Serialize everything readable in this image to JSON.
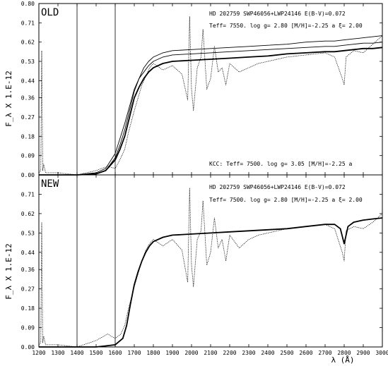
{
  "chart_data": [
    {
      "type": "line",
      "panel_label": "OLD",
      "xlabel": "λ (Å)",
      "ylabel": "F_λ X 1.E-12",
      "xlim": [
        1200,
        3000
      ],
      "ylim": [
        0.0,
        0.8
      ],
      "grid": false,
      "x_ticks": [
        1200,
        1300,
        1400,
        1500,
        1600,
        1700,
        1800,
        1900,
        2000,
        2100,
        2200,
        2300,
        2400,
        2500,
        2600,
        2700,
        2800,
        2900,
        3000
      ],
      "y_ticks": [
        0.0,
        0.09,
        0.18,
        0.27,
        0.36,
        0.44,
        0.53,
        0.62,
        0.71,
        0.8
      ],
      "y_tick_labels": [
        "0.00",
        "0.09",
        "0.18",
        "0.27",
        "0.36",
        "0.44",
        "0.53",
        "0.62",
        "0.71",
        "0.80"
      ],
      "vlines": [
        1400,
        1600
      ],
      "annotations": {
        "line1": "HD 202759 SWP46056+LWP24146   E(B-V)=0.072",
        "line2": "Teff=  7550.  log g= 2.80 [M/H]=-2.25 a  ξ= 2.00",
        "line3": "KCC: Teff=  7500. log g= 3.05 [M/H]=-2.25 a"
      },
      "series": [
        {
          "style": "thick",
          "x": [
            1200,
            1300,
            1400,
            1500,
            1550,
            1600,
            1625,
            1650,
            1675,
            1700,
            1725,
            1750,
            1775,
            1800,
            1850,
            1900,
            2000,
            2100,
            2200,
            2300,
            2400,
            2500,
            2600,
            2700,
            2750,
            2800,
            2850,
            2900,
            2950,
            3000
          ],
          "y": [
            0.0,
            0.0,
            0.0,
            0.005,
            0.02,
            0.07,
            0.12,
            0.18,
            0.27,
            0.36,
            0.41,
            0.45,
            0.48,
            0.5,
            0.52,
            0.53,
            0.535,
            0.54,
            0.545,
            0.55,
            0.555,
            0.565,
            0.57,
            0.575,
            0.575,
            0.58,
            0.585,
            0.59,
            0.59,
            0.595
          ]
        },
        {
          "style": "thin",
          "x": [
            1200,
            1300,
            1400,
            1500,
            1550,
            1600,
            1625,
            1650,
            1675,
            1700,
            1725,
            1750,
            1775,
            1800,
            1850,
            1900,
            2000,
            2100,
            2200,
            2300,
            2400,
            2500,
            2600,
            2700,
            2750,
            2800,
            2850,
            2900,
            2950,
            3000
          ],
          "y": [
            0.0,
            0.0,
            0.0,
            0.01,
            0.03,
            0.1,
            0.17,
            0.24,
            0.32,
            0.4,
            0.45,
            0.48,
            0.51,
            0.53,
            0.55,
            0.56,
            0.565,
            0.57,
            0.575,
            0.58,
            0.585,
            0.59,
            0.595,
            0.6,
            0.6,
            0.605,
            0.61,
            0.615,
            0.615,
            0.62
          ]
        },
        {
          "style": "thin",
          "x": [
            1200,
            1300,
            1400,
            1500,
            1550,
            1600,
            1625,
            1650,
            1675,
            1700,
            1725,
            1750,
            1775,
            1800,
            1850,
            1900,
            2000,
            2100,
            2200,
            2300,
            2400,
            2500,
            2600,
            2700,
            2750,
            2800,
            2850,
            2900,
            2950,
            3000
          ],
          "y": [
            0.0,
            0.0,
            0.0,
            0.005,
            0.02,
            0.08,
            0.14,
            0.21,
            0.3,
            0.39,
            0.45,
            0.5,
            0.53,
            0.55,
            0.57,
            0.58,
            0.585,
            0.59,
            0.595,
            0.6,
            0.605,
            0.61,
            0.62,
            0.625,
            0.625,
            0.63,
            0.635,
            0.64,
            0.645,
            0.65
          ]
        },
        {
          "style": "dotted",
          "x": [
            1200,
            1210,
            1215,
            1220,
            1225,
            1235,
            1300,
            1400,
            1500,
            1560,
            1600,
            1630,
            1650,
            1670,
            1700,
            1720,
            1740,
            1760,
            1780,
            1800,
            1850,
            1900,
            1950,
            1980,
            1990,
            2000,
            2010,
            2030,
            2050,
            2060,
            2080,
            2100,
            2120,
            2140,
            2160,
            2180,
            2200,
            2250,
            2300,
            2350,
            2400,
            2500,
            2600,
            2700,
            2750,
            2790,
            2800,
            2810,
            2850,
            2900,
            2950,
            3000
          ],
          "y": [
            0.01,
            0.02,
            0.58,
            0.02,
            0.05,
            0.01,
            0.01,
            0.0,
            0.02,
            0.04,
            0.03,
            0.08,
            0.12,
            0.2,
            0.3,
            0.36,
            0.42,
            0.46,
            0.5,
            0.52,
            0.49,
            0.51,
            0.47,
            0.35,
            0.74,
            0.4,
            0.3,
            0.5,
            0.55,
            0.68,
            0.4,
            0.45,
            0.6,
            0.48,
            0.5,
            0.42,
            0.52,
            0.48,
            0.5,
            0.52,
            0.53,
            0.55,
            0.56,
            0.57,
            0.55,
            0.45,
            0.42,
            0.55,
            0.58,
            0.57,
            0.61,
            0.65
          ]
        }
      ]
    },
    {
      "type": "line",
      "panel_label": "NEW",
      "xlabel": "λ (Å)",
      "ylabel": "F_λ X 1.E-12",
      "xlim": [
        1200,
        3000
      ],
      "ylim": [
        0.0,
        0.8
      ],
      "grid": false,
      "x_ticks": [
        1200,
        1300,
        1400,
        1500,
        1600,
        1700,
        1800,
        1900,
        2000,
        2100,
        2200,
        2300,
        2400,
        2500,
        2600,
        2700,
        2800,
        2900,
        3000
      ],
      "x_tick_labels": [
        "1200",
        "1300",
        "1400",
        "1500",
        "1600",
        "1700",
        "1800",
        "1900",
        "2000",
        "2100",
        "2200",
        "2300",
        "2400",
        "2500",
        "2600",
        "2700",
        "2800",
        "2900",
        "3000"
      ],
      "y_ticks": [
        0.0,
        0.09,
        0.18,
        0.27,
        0.36,
        0.44,
        0.53,
        0.62,
        0.71
      ],
      "y_tick_labels": [
        "0.00",
        "0.09",
        "0.18",
        "0.27",
        "0.36",
        "0.44",
        "0.53",
        "0.62",
        "0.71"
      ],
      "vlines": [
        1400,
        1600
      ],
      "annotations": {
        "line1": "HD 202759 SWP46056+LWP24146   E(B-V)=0.072",
        "line2": "Teff=  7500.   log g= 2.80 [M/H]=-2.25 a  ξ= 2.00"
      },
      "series": [
        {
          "style": "thick",
          "x": [
            1200,
            1300,
            1400,
            1500,
            1550,
            1600,
            1640,
            1660,
            1680,
            1700,
            1720,
            1740,
            1760,
            1780,
            1800,
            1850,
            1900,
            2000,
            2100,
            2200,
            2300,
            2400,
            2500,
            2600,
            2700,
            2750,
            2780,
            2800,
            2820,
            2850,
            2900,
            2950,
            3000
          ],
          "y": [
            0.0,
            0.0,
            0.0,
            0.0,
            0.005,
            0.01,
            0.04,
            0.1,
            0.2,
            0.29,
            0.35,
            0.4,
            0.44,
            0.47,
            0.49,
            0.51,
            0.52,
            0.525,
            0.53,
            0.535,
            0.54,
            0.545,
            0.55,
            0.56,
            0.57,
            0.57,
            0.55,
            0.48,
            0.56,
            0.58,
            0.59,
            0.595,
            0.6
          ]
        },
        {
          "style": "dotted",
          "x": [
            1200,
            1210,
            1215,
            1220,
            1225,
            1235,
            1300,
            1400,
            1500,
            1560,
            1600,
            1630,
            1650,
            1670,
            1700,
            1720,
            1740,
            1760,
            1780,
            1800,
            1850,
            1900,
            1950,
            1980,
            1990,
            2000,
            2010,
            2030,
            2050,
            2060,
            2080,
            2100,
            2120,
            2140,
            2160,
            2180,
            2200,
            2250,
            2300,
            2350,
            2400,
            2500,
            2600,
            2700,
            2750,
            2790,
            2800,
            2810,
            2850,
            2900,
            2950,
            3000
          ],
          "y": [
            0.01,
            0.02,
            0.58,
            0.02,
            0.05,
            0.01,
            0.01,
            0.0,
            0.03,
            0.06,
            0.04,
            0.06,
            0.1,
            0.18,
            0.28,
            0.34,
            0.4,
            0.45,
            0.48,
            0.5,
            0.47,
            0.5,
            0.45,
            0.3,
            0.74,
            0.38,
            0.28,
            0.5,
            0.54,
            0.68,
            0.38,
            0.44,
            0.6,
            0.46,
            0.5,
            0.4,
            0.52,
            0.46,
            0.5,
            0.52,
            0.53,
            0.55,
            0.56,
            0.57,
            0.55,
            0.44,
            0.4,
            0.54,
            0.56,
            0.55,
            0.58,
            0.62
          ]
        }
      ]
    }
  ]
}
